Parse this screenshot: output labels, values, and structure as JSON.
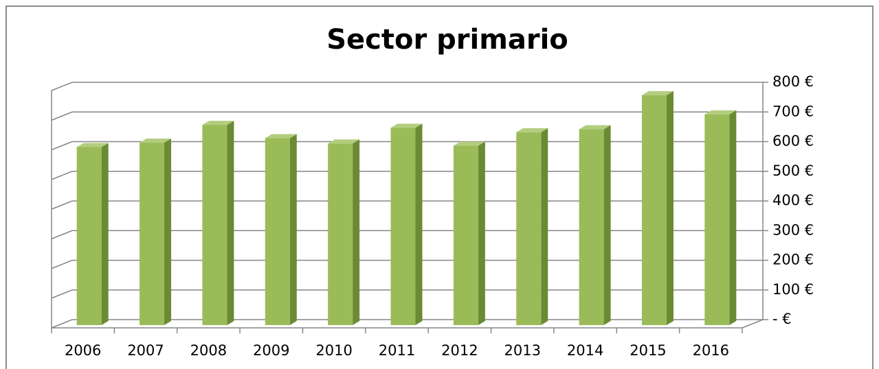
{
  "chart_data": {
    "type": "bar",
    "title": "Sector primario",
    "categories": [
      "2006",
      "2007",
      "2008",
      "2009",
      "2010",
      "2011",
      "2012",
      "2013",
      "2014",
      "2015",
      "2016"
    ],
    "values": [
      600,
      615,
      675,
      630,
      612,
      665,
      605,
      650,
      660,
      775,
      710
    ],
    "color": "#9bbb59",
    "ylim": [
      0,
      800
    ],
    "yticks": [
      {
        "value": 0,
        "label": "-  €"
      },
      {
        "value": 100,
        "label": "100 €"
      },
      {
        "value": 200,
        "label": "200 €"
      },
      {
        "value": 300,
        "label": "300 €"
      },
      {
        "value": 400,
        "label": "400 €"
      },
      {
        "value": 500,
        "label": "500 €"
      },
      {
        "value": 600,
        "label": "600 €"
      },
      {
        "value": 700,
        "label": "700 €"
      },
      {
        "value": 800,
        "label": "800 €"
      }
    ],
    "grid": true
  }
}
